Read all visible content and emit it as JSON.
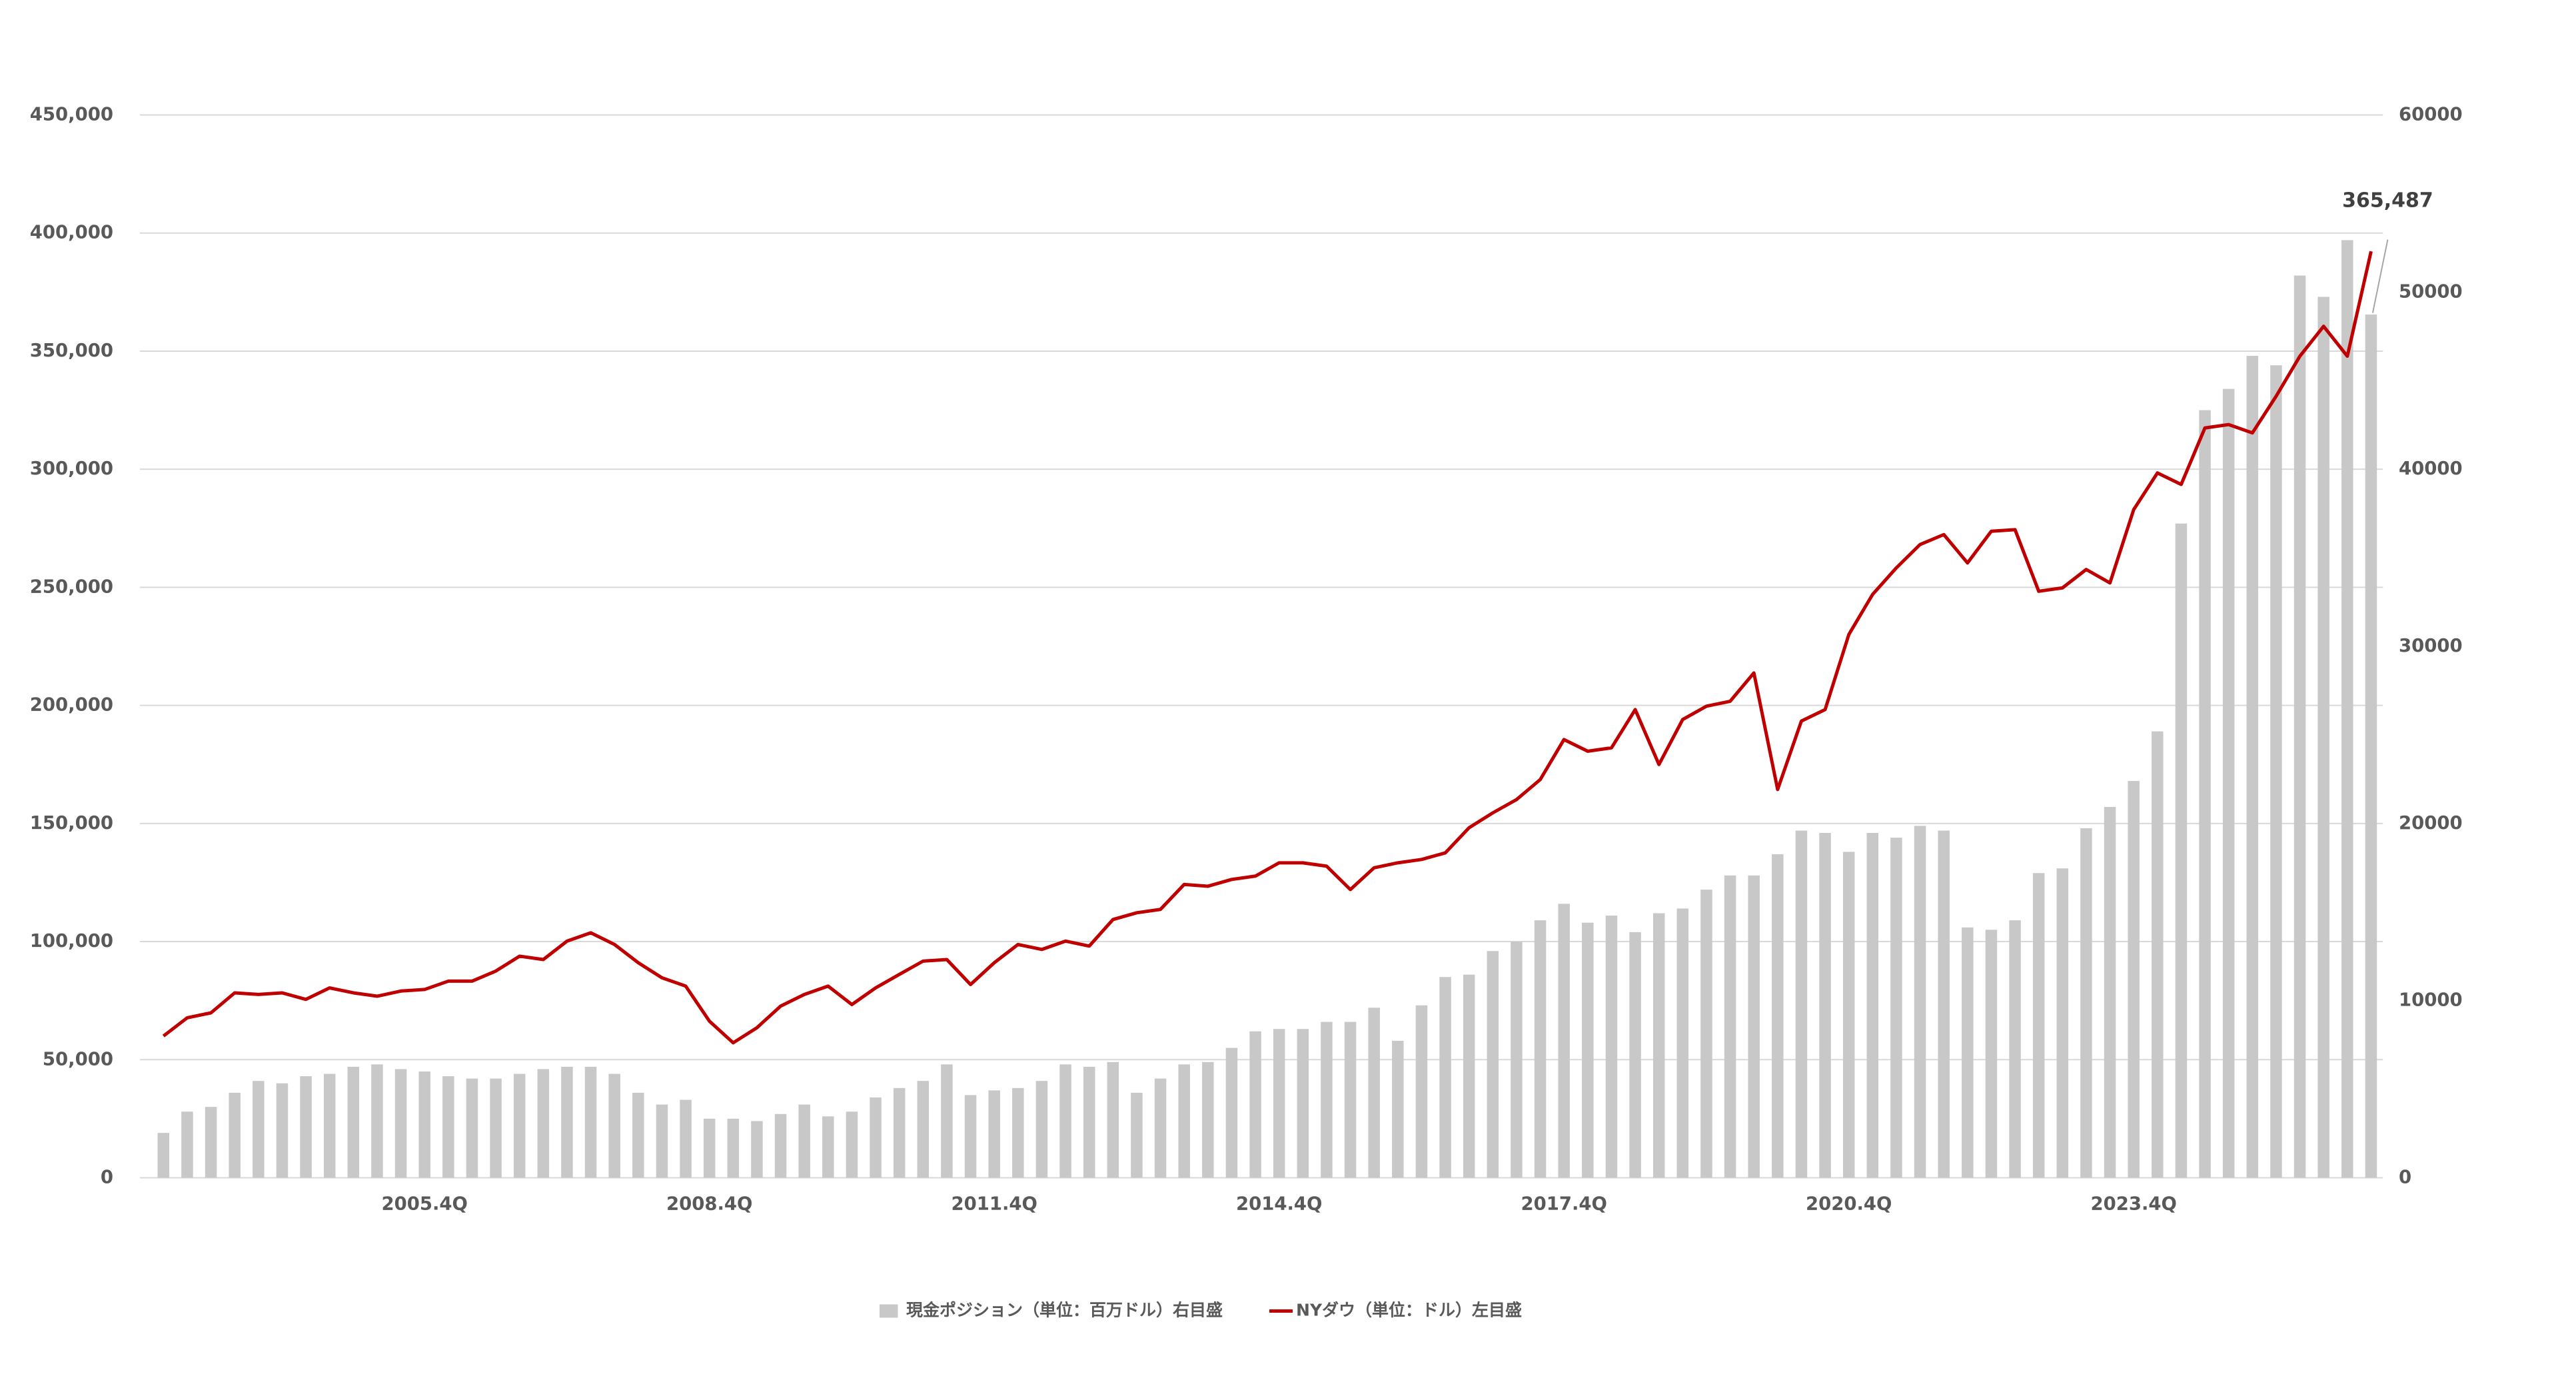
{
  "chart_data": {
    "type": "bar",
    "categories": [
      null,
      null,
      null,
      null,
      null,
      null,
      null,
      null,
      null,
      null,
      null,
      "2005.4Q",
      null,
      null,
      null,
      null,
      null,
      null,
      null,
      null,
      null,
      null,
      null,
      "2008.4Q",
      null,
      null,
      null,
      null,
      null,
      null,
      null,
      null,
      null,
      null,
      null,
      "2011.4Q",
      null,
      null,
      null,
      null,
      null,
      null,
      null,
      null,
      null,
      null,
      null,
      "2014.4Q",
      null,
      null,
      null,
      null,
      null,
      null,
      null,
      null,
      null,
      null,
      null,
      "2017.4Q",
      null,
      null,
      null,
      null,
      null,
      null,
      null,
      null,
      null,
      null,
      null,
      "2020.4Q",
      null,
      null,
      null,
      null,
      null,
      null,
      null,
      null,
      null,
      null,
      null,
      "2023.4Q",
      null,
      null,
      null,
      null,
      null,
      null,
      null,
      null,
      null,
      null
    ],
    "series": [
      {
        "name": "現金ポジション（単位：百万ドル）右目盛",
        "type": "bar",
        "color": "#c8c8c8",
        "values": [
          19000,
          28000,
          30000,
          36000,
          41000,
          40000,
          43000,
          44000,
          47000,
          48000,
          46000,
          45000,
          43000,
          42000,
          42000,
          44000,
          46000,
          47000,
          47000,
          44000,
          36000,
          31000,
          33000,
          25000,
          25000,
          24000,
          27000,
          31000,
          26000,
          28000,
          34000,
          38000,
          41000,
          48000,
          35000,
          37000,
          38000,
          41000,
          48000,
          47000,
          49000,
          36000,
          42000,
          48000,
          49000,
          55000,
          62000,
          63000,
          63000,
          66000,
          66000,
          72000,
          58000,
          73000,
          85000,
          86000,
          96000,
          100000,
          109000,
          116000,
          108000,
          111000,
          104000,
          112000,
          114000,
          122000,
          128000,
          128000,
          137000,
          147000,
          146000,
          138000,
          146000,
          144000,
          149000,
          147000,
          106000,
          105000,
          109000,
          129000,
          131000,
          148000,
          157000,
          168000,
          189000,
          277000,
          325000,
          334000,
          348000,
          344000,
          382000,
          373000,
          397000,
          365487
        ],
        "value_labels": [
          null,
          null,
          null,
          null,
          null,
          null,
          null,
          null,
          null,
          null,
          null,
          null,
          null,
          null,
          null,
          null,
          null,
          null,
          null,
          null,
          null,
          null,
          null,
          null,
          null,
          null,
          null,
          null,
          null,
          null,
          null,
          null,
          null,
          null,
          null,
          null,
          null,
          null,
          null,
          null,
          null,
          null,
          null,
          null,
          null,
          null,
          null,
          null,
          null,
          null,
          null,
          null,
          null,
          null,
          null,
          null,
          null,
          null,
          null,
          null,
          null,
          null,
          null,
          null,
          null,
          null,
          null,
          null,
          null,
          null,
          null,
          null,
          null,
          null,
          null,
          null,
          null,
          null,
          null,
          null,
          null,
          null,
          null,
          null,
          null,
          null,
          null,
          null,
          null,
          null,
          null,
          null,
          null,
          "365,487"
        ]
      },
      {
        "name": "NYダウ（単位：ドル）左目盛",
        "type": "line",
        "axis": "y2",
        "color": "#c00000",
        "values": [
          8000,
          9030,
          9310,
          10440,
          10350,
          10440,
          10070,
          10720,
          10440,
          10250,
          10540,
          10630,
          11100,
          11100,
          11670,
          12510,
          12320,
          13360,
          13830,
          13170,
          12140,
          11290,
          10820,
          8840,
          7620,
          8470,
          9690,
          10350,
          10820,
          9780,
          10720,
          11480,
          12230,
          12320,
          10910,
          12140,
          13170,
          12890,
          13360,
          13080,
          14580,
          14960,
          15150,
          16560,
          16460,
          16840,
          17030,
          17780,
          17780,
          17590,
          16270,
          17500,
          17780,
          17970,
          18340,
          19760,
          20600,
          21350,
          22480,
          24740,
          24080,
          24270,
          26430,
          23330,
          25870,
          26620,
          26900,
          28500,
          21920,
          25780,
          26430,
          30670,
          32930,
          34430,
          35750,
          36310,
          34710,
          36500,
          36590,
          33110,
          33300,
          34340,
          33580,
          37720,
          39790,
          39140,
          42330,
          42520,
          42050,
          44120,
          46380,
          48070,
          46380,
          52300
        ]
      }
    ],
    "ylim": [
      0,
      450000
    ],
    "yticks": [
      0,
      {
        "value": 50000,
        "label": "50,000"
      },
      {
        "value": 100000,
        "label": "100,000"
      },
      {
        "value": 150000,
        "label": "150,000"
      },
      {
        "value": 200000,
        "label": "200,000"
      },
      {
        "value": 250000,
        "label": "250,000"
      },
      {
        "value": 300000,
        "label": "300,000"
      },
      {
        "value": 350000,
        "label": "350,000"
      },
      {
        "value": 400000,
        "label": "400,000"
      },
      {
        "value": 450000,
        "label": "450,000"
      }
    ],
    "y2lim": [
      0,
      60000
    ],
    "y2ticks": [
      0,
      10000,
      20000,
      30000,
      40000,
      50000,
      60000
    ],
    "grid": true,
    "legend": "bottom"
  }
}
